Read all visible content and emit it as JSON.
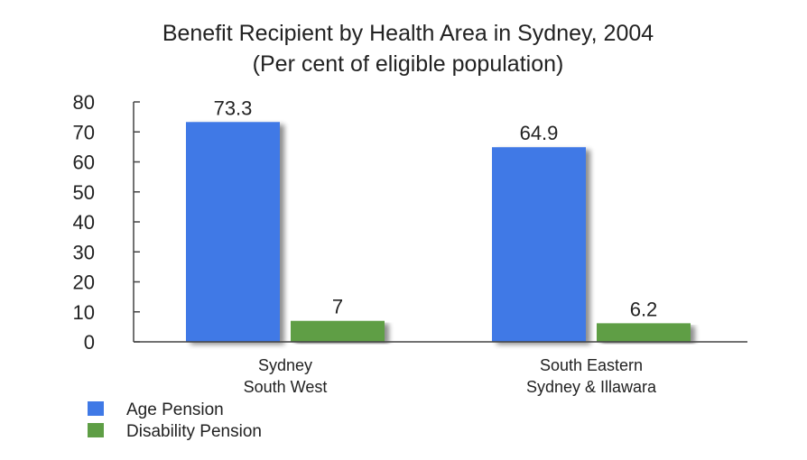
{
  "chart_data": {
    "type": "bar",
    "title": "Benefit Recipient by Health Area in Sydney, 2004",
    "subtitle": "(Per cent of eligible population)",
    "categories": [
      [
        "Sydney",
        "South West"
      ],
      [
        "South Eastern",
        "Sydney  & Illawara"
      ]
    ],
    "series": [
      {
        "name": "Age Pension",
        "color": "#3F79E6",
        "values": [
          73.3,
          64.9
        ],
        "labels": [
          "73.3",
          "64.9"
        ]
      },
      {
        "name": "Disability Pension",
        "color": "#5E9E45",
        "values": [
          7,
          6.2
        ],
        "labels": [
          "7",
          "6.2"
        ]
      }
    ],
    "y_ticks": [
      0,
      10,
      20,
      30,
      40,
      50,
      60,
      70,
      80
    ],
    "ylim": [
      0,
      80
    ],
    "grid": false,
    "legend_position": "bottom-left"
  }
}
